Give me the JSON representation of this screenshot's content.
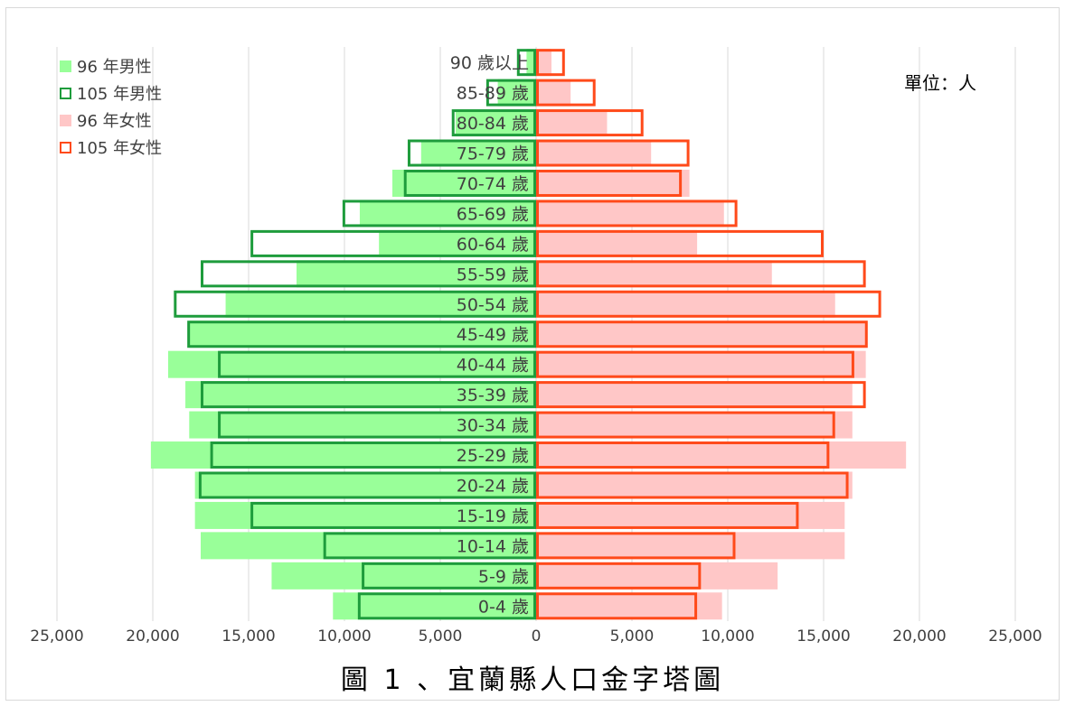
{
  "chart_data": {
    "type": "bar",
    "orientation": "horizontal-population-pyramid",
    "title": "圖 1 、宜蘭縣人口金字塔圖",
    "unit_label": "單位：人",
    "categories": [
      "0-4 歲",
      "5-9 歲",
      "10-14 歲",
      "15-19 歲",
      "20-24 歲",
      "25-29 歲",
      "30-34 歲",
      "35-39 歲",
      "40-44 歲",
      "45-49 歲",
      "50-54 歲",
      "55-59 歲",
      "60-64 歲",
      "65-69 歲",
      "70-74 歲",
      "75-79 歲",
      "80-84 歲",
      "85-89 歲",
      "90 歲以上"
    ],
    "xlim": [
      -25000,
      25000
    ],
    "x_ticks": [
      "25,000",
      "20,000",
      "15,000",
      "10,000",
      "5,000",
      "0",
      "5,000",
      "10,000",
      "15,000",
      "20,000",
      "25,000"
    ],
    "grid": true,
    "legend_position": "top-left",
    "series": [
      {
        "name": "96 年男性",
        "side": "left",
        "style": "filled",
        "color": "#99ff99",
        "values": [
          10600,
          13800,
          17500,
          17800,
          17800,
          20100,
          18100,
          18300,
          19200,
          18100,
          16200,
          12500,
          8200,
          9200,
          7500,
          6000,
          4200,
          2000,
          500
        ]
      },
      {
        "name": "105 年男性",
        "side": "left",
        "style": "outline",
        "color": "#1e9c3c",
        "values": [
          9300,
          9100,
          11100,
          14900,
          17600,
          17000,
          16600,
          17500,
          16600,
          18200,
          18900,
          17500,
          14900,
          10100,
          6900,
          6700,
          4400,
          2600,
          1000
        ]
      },
      {
        "name": "96 年女性",
        "side": "right",
        "style": "filled",
        "color": "#ffc7c7",
        "values": [
          9700,
          12600,
          16100,
          16100,
          16500,
          19300,
          16500,
          16500,
          17200,
          17300,
          15600,
          12300,
          8400,
          9800,
          8000,
          6000,
          3700,
          1800,
          800
        ]
      },
      {
        "name": "105 年女性",
        "side": "right",
        "style": "outline",
        "color": "#ff4a1a",
        "values": [
          8400,
          8600,
          10400,
          13700,
          16300,
          15300,
          15600,
          17200,
          16600,
          17300,
          18000,
          17200,
          15000,
          10500,
          7600,
          8000,
          5600,
          3100,
          1500
        ]
      }
    ]
  }
}
